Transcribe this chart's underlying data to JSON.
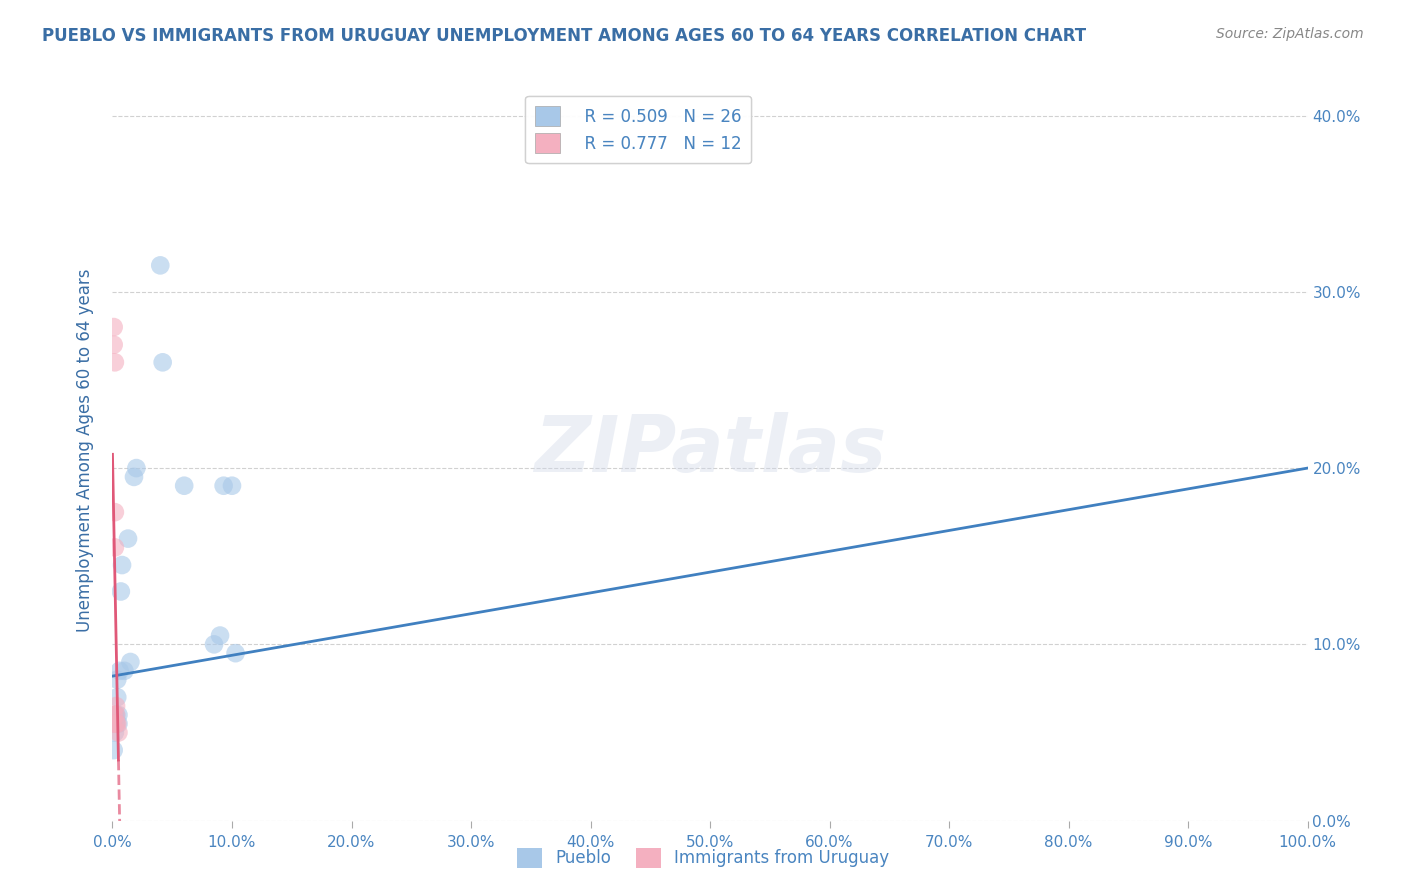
{
  "title": "PUEBLO VS IMMIGRANTS FROM URUGUAY UNEMPLOYMENT AMONG AGES 60 TO 64 YEARS CORRELATION CHART",
  "source_text": "Source: ZipAtlas.com",
  "ylabel": "Unemployment Among Ages 60 to 64 years",
  "pueblo_x": [
    0.001,
    0.001,
    0.002,
    0.002,
    0.003,
    0.003,
    0.004,
    0.004,
    0.005,
    0.005,
    0.006,
    0.007,
    0.008,
    0.01,
    0.013,
    0.015,
    0.018,
    0.02,
    0.04,
    0.042,
    0.06,
    0.085,
    0.09,
    0.093,
    0.1,
    0.103
  ],
  "pueblo_y": [
    0.055,
    0.04,
    0.06,
    0.05,
    0.06,
    0.055,
    0.07,
    0.08,
    0.06,
    0.055,
    0.085,
    0.13,
    0.145,
    0.085,
    0.16,
    0.09,
    0.195,
    0.2,
    0.315,
    0.26,
    0.19,
    0.1,
    0.105,
    0.19,
    0.19,
    0.095
  ],
  "uruguay_x": [
    0.0005,
    0.001,
    0.001,
    0.001,
    0.002,
    0.002,
    0.002,
    0.003,
    0.003,
    0.003,
    0.004,
    0.005
  ],
  "uruguay_y": [
    0.055,
    0.06,
    0.27,
    0.28,
    0.26,
    0.175,
    0.155,
    0.065,
    0.06,
    0.055,
    0.055,
    0.05
  ],
  "pueblo_R": 0.509,
  "pueblo_N": 26,
  "uruguay_R": 0.777,
  "uruguay_N": 12,
  "pueblo_color": "#a8c8e8",
  "pueblo_line_color": "#4080c0",
  "uruguay_color": "#f4b0c0",
  "uruguay_line_color": "#e05878",
  "xlim": [
    0.0,
    1.0
  ],
  "ylim": [
    0.0,
    0.42
  ],
  "yticks": [
    0.0,
    0.1,
    0.2,
    0.3,
    0.4
  ],
  "xticks": [
    0.0,
    0.1,
    0.2,
    0.3,
    0.4,
    0.5,
    0.6,
    0.7,
    0.8,
    0.9,
    1.0
  ],
  "background_color": "#ffffff",
  "grid_color": "#cccccc",
  "watermark_text": "ZIPatlas",
  "title_color": "#3a6ea5",
  "axis_label_color": "#3a6ea5",
  "tick_color": "#4a85c0",
  "source_color": "#888888"
}
